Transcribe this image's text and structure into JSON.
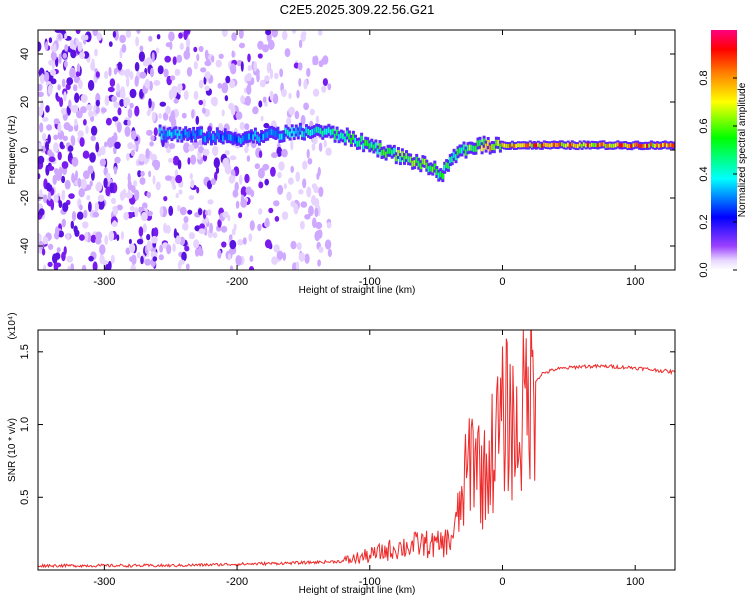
{
  "title": "C2E5.2025.309.22.56.G21",
  "chart_data": [
    {
      "type": "heatmap",
      "title": "C2E5.2025.309.22.56.G21",
      "xlabel": "Height of straight line (km)",
      "ylabel": "Frequency (Hz)",
      "xlim": [
        -350,
        130
      ],
      "ylim": [
        -50,
        50
      ],
      "xticks": [
        -300,
        -200,
        -100,
        0,
        100
      ],
      "yticks": [
        -40,
        -20,
        0,
        20,
        40
      ],
      "colorbar": {
        "label": "Normalized spectral amplitude",
        "range": [
          0.0,
          1.0
        ],
        "ticks": [
          0.0,
          0.2,
          0.4,
          0.6,
          0.8
        ],
        "tick_labels": [
          "0.0",
          "0.2",
          "0.4",
          "0.6",
          "0.8"
        ],
        "colors": [
          "#ffffff",
          "#7f00ff",
          "#0000ff",
          "#00ffff",
          "#00ff00",
          "#ffff00",
          "#ff8000",
          "#ff0000",
          "#ff0080"
        ]
      },
      "noise_region_x": [
        -350,
        -130
      ],
      "signal_ridge": [
        {
          "x": -258,
          "y": 7,
          "amp": 0.35
        },
        {
          "x": -200,
          "y": 5,
          "amp": 0.3
        },
        {
          "x": -180,
          "y": 6,
          "amp": 0.35
        },
        {
          "x": -160,
          "y": 7,
          "amp": 0.4
        },
        {
          "x": -140,
          "y": 8,
          "amp": 0.45
        },
        {
          "x": -120,
          "y": 6,
          "amp": 0.5
        },
        {
          "x": -100,
          "y": 2,
          "amp": 0.55
        },
        {
          "x": -80,
          "y": -2,
          "amp": 0.6
        },
        {
          "x": -60,
          "y": -6,
          "amp": 0.6
        },
        {
          "x": -45,
          "y": -10,
          "amp": 0.55
        },
        {
          "x": -35,
          "y": -2,
          "amp": 0.5
        },
        {
          "x": -20,
          "y": 2,
          "amp": 0.7
        },
        {
          "x": 0,
          "y": 2,
          "amp": 0.8
        },
        {
          "x": 30,
          "y": 2,
          "amp": 0.85
        },
        {
          "x": 90,
          "y": 2,
          "amp": 0.85
        },
        {
          "x": 130,
          "y": 2,
          "amp": 0.85
        }
      ]
    },
    {
      "type": "line",
      "xlabel": "Height of straight line (km)",
      "ylabel": "SNR (10 * v/v)",
      "y_multiplier": "(x10⁴)",
      "xlim": [
        -350,
        130
      ],
      "ylim": [
        0,
        1.65
      ],
      "xticks": [
        -300,
        -200,
        -100,
        0,
        100
      ],
      "yticks": [
        0.5,
        1.0,
        1.5
      ],
      "ytick_labels": [
        "0.5",
        "1.0",
        "1.5"
      ],
      "series": [
        {
          "name": "SNR",
          "color": "#ee2a2a",
          "x": [
            -350,
            -300,
            -250,
            -200,
            -150,
            -120,
            -100,
            -80,
            -60,
            -50,
            -40,
            -35,
            -30,
            -25,
            -20,
            -15,
            -10,
            -5,
            0,
            5,
            10,
            15,
            20,
            30,
            40,
            60,
            80,
            100,
            120,
            130
          ],
          "y": [
            0.03,
            0.03,
            0.03,
            0.04,
            0.05,
            0.06,
            0.1,
            0.15,
            0.18,
            0.17,
            0.2,
            0.3,
            0.5,
            0.75,
            0.85,
            0.6,
            0.75,
            0.9,
            1.0,
            1.1,
            0.9,
            1.05,
            1.25,
            1.35,
            1.38,
            1.4,
            1.4,
            1.39,
            1.37,
            1.36
          ]
        }
      ]
    }
  ]
}
